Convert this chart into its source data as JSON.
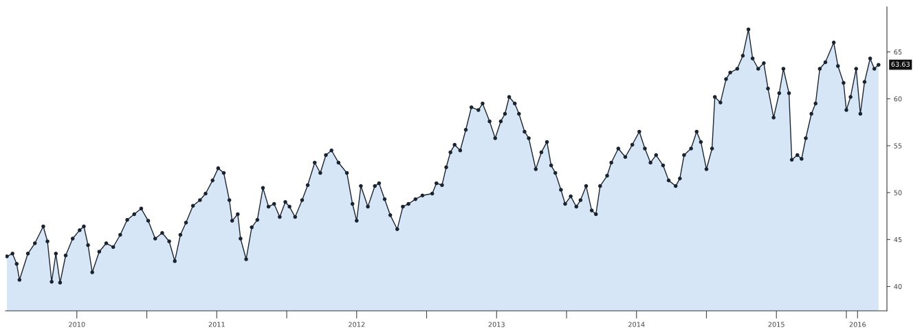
{
  "chart_data": {
    "type": "area",
    "color": "#d6e6f7",
    "marker": "circle",
    "grid": false,
    "legend": false,
    "x": [
      2010.0,
      2010.04,
      2010.07,
      2010.09,
      2010.15,
      2010.2,
      2010.26,
      2010.29,
      2010.32,
      2010.35,
      2010.38,
      2010.42,
      2010.47,
      2010.52,
      2010.55,
      2010.58,
      2010.61,
      2010.66,
      2010.71,
      2010.76,
      2010.81,
      2010.86,
      2010.91,
      2010.96,
      2011.01,
      2011.06,
      2011.11,
      2011.16,
      2011.2,
      2011.24,
      2011.28,
      2011.33,
      2011.38,
      2011.42,
      2011.47,
      2011.51,
      2011.55,
      2011.59,
      2011.61,
      2011.65,
      2011.67,
      2011.71,
      2011.75,
      2011.79,
      2011.83,
      2011.87,
      2011.91,
      2011.95,
      2011.99,
      2012.02,
      2012.06,
      2012.11,
      2012.15,
      2012.2,
      2012.24,
      2012.28,
      2012.32,
      2012.37,
      2012.43,
      2012.47,
      2012.5,
      2012.53,
      2012.58,
      2012.63,
      2012.66,
      2012.7,
      2012.74,
      2012.79,
      2012.83,
      2012.87,
      2012.92,
      2012.97,
      2013.04,
      2013.07,
      2013.11,
      2013.14,
      2013.17,
      2013.2,
      2013.24,
      2013.28,
      2013.32,
      2013.37,
      2013.4,
      2013.45,
      2013.49,
      2013.53,
      2013.56,
      2013.59,
      2013.63,
      2013.66,
      2013.7,
      2013.73,
      2013.78,
      2013.82,
      2013.86,
      2013.89,
      2013.92,
      2013.96,
      2013.99,
      2014.03,
      2014.07,
      2014.1,
      2014.14,
      2014.18,
      2014.21,
      2014.24,
      2014.29,
      2014.32,
      2014.37,
      2014.42,
      2014.47,
      2014.52,
      2014.56,
      2014.6,
      2014.64,
      2014.69,
      2014.73,
      2014.78,
      2014.81,
      2014.84,
      2014.89,
      2014.93,
      2014.96,
      2015.0,
      2015.04,
      2015.06,
      2015.1,
      2015.14,
      2015.17,
      2015.22,
      2015.26,
      2015.3,
      2015.33,
      2015.37,
      2015.41,
      2015.44,
      2015.48,
      2015.52,
      2015.55,
      2015.59,
      2015.61,
      2015.65,
      2015.68,
      2015.71,
      2015.75,
      2015.78,
      2015.81,
      2015.85,
      2015.91,
      2015.94,
      2015.98,
      2016.0,
      2016.03,
      2016.07,
      2016.1,
      2016.13,
      2016.17,
      2016.2,
      2016.23
    ],
    "series": [
      {
        "color": "#1a2430",
        "values": [
          43.2,
          43.5,
          42.4,
          40.7,
          43.5,
          44.6,
          46.4,
          44.8,
          40.5,
          43.5,
          40.4,
          43.3,
          45.1,
          46.0,
          46.4,
          44.4,
          41.5,
          43.7,
          44.6,
          44.2,
          45.5,
          47.1,
          47.7,
          48.3,
          47.0,
          45.1,
          45.7,
          44.8,
          42.7,
          45.5,
          46.8,
          48.6,
          49.2,
          49.9,
          51.3,
          52.6,
          52.1,
          49.2,
          47.0,
          47.7,
          45.1,
          42.9,
          46.3,
          47.1,
          50.5,
          48.5,
          48.8,
          47.4,
          49.0,
          48.5,
          47.4,
          49.2,
          50.8,
          53.2,
          52.1,
          54.0,
          54.5,
          53.2,
          52.1,
          48.8,
          47.0,
          50.7,
          48.5,
          50.7,
          51.0,
          49.3,
          47.6,
          46.1,
          48.5,
          48.8,
          49.3,
          49.7,
          49.9,
          51.0,
          50.8,
          52.7,
          54.3,
          55.1,
          54.5,
          56.7,
          59.1,
          58.8,
          59.5,
          57.6,
          55.8,
          57.6,
          58.4,
          60.2,
          59.5,
          58.4,
          56.5,
          55.8,
          52.5,
          54.3,
          55.4,
          52.9,
          52.1,
          50.3,
          48.8,
          49.6,
          48.5,
          49.2,
          50.7,
          48.1,
          47.7,
          50.7,
          51.8,
          53.2,
          54.7,
          53.8,
          55.1,
          56.5,
          54.7,
          53.2,
          54.0,
          52.9,
          51.3,
          50.7,
          51.5,
          54.0,
          54.7,
          56.5,
          55.4,
          52.5,
          54.7,
          60.2,
          59.6,
          62.1,
          62.8,
          63.2,
          64.6,
          67.4,
          64.3,
          63.2,
          63.8,
          61.1,
          58.0,
          60.6,
          63.2,
          60.6,
          53.5,
          54.0,
          53.6,
          55.8,
          58.4,
          59.5,
          63.2,
          63.9,
          66.0,
          63.5,
          61.7,
          58.8,
          60.2,
          63.2,
          58.4,
          61.8,
          64.3,
          63.2,
          63.63
        ]
      }
    ],
    "xlim": [
      2009.99,
      2016.29
    ],
    "xticks": [
      {
        "value": 2010.5,
        "label": "2010"
      },
      {
        "value": 2011,
        "label": null
      },
      {
        "value": 2011.5,
        "label": "2011"
      },
      {
        "value": 2012,
        "label": null
      },
      {
        "value": 2012.5,
        "label": "2012"
      },
      {
        "value": 2013,
        "label": null
      },
      {
        "value": 2013.5,
        "label": "2013"
      },
      {
        "value": 2014,
        "label": null
      },
      {
        "value": 2014.5,
        "label": "2014"
      },
      {
        "value": 2015,
        "label": null
      },
      {
        "value": 2015.5,
        "label": "2015"
      },
      {
        "value": 2016,
        "label": null
      },
      {
        "value": 2016.08,
        "label": "2016"
      }
    ],
    "ylim": [
      37.4,
      69.8
    ],
    "yticks": [
      40,
      45,
      50,
      55,
      60,
      65
    ],
    "annotations": [
      {
        "text": "63.63",
        "x": 2016.23,
        "y": 63.63
      }
    ]
  }
}
